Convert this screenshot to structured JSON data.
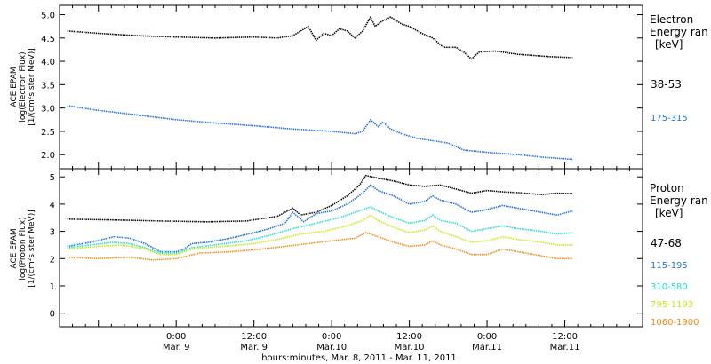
{
  "chart_data": [
    {
      "type": "line",
      "panel": "electron",
      "ylabel_lines": [
        "ACE EPAM",
        "log(Electron Flux)",
        "[1/(cm²s ster MeV)]"
      ],
      "ylim": [
        1.7,
        5.2
      ],
      "yticks": [
        2.0,
        2.5,
        3.0,
        3.5,
        4.0,
        4.5,
        5.0
      ],
      "ytick_labels": [
        "2.0",
        "2.5",
        "3.0",
        "3.5",
        "4.0",
        "4.5",
        "5.0"
      ],
      "legend_title_lines": [
        "Electron",
        "Energy ran",
        "[keV]"
      ],
      "series": [
        {
          "name": "38-53",
          "color": "#000000",
          "points": [
            [
              -0.7,
              4.65
            ],
            [
              -0.5,
              4.6
            ],
            [
              -0.25,
              4.55
            ],
            [
              0.0,
              4.52
            ],
            [
              0.25,
              4.5
            ],
            [
              0.5,
              4.52
            ],
            [
              0.65,
              4.5
            ],
            [
              0.75,
              4.55
            ],
            [
              0.85,
              4.75
            ],
            [
              0.9,
              4.45
            ],
            [
              0.95,
              4.6
            ],
            [
              1.0,
              4.55
            ],
            [
              1.05,
              4.7
            ],
            [
              1.1,
              4.65
            ],
            [
              1.15,
              4.5
            ],
            [
              1.2,
              4.65
            ],
            [
              1.25,
              4.95
            ],
            [
              1.28,
              4.75
            ],
            [
              1.32,
              4.85
            ],
            [
              1.38,
              4.95
            ],
            [
              1.45,
              4.8
            ],
            [
              1.5,
              4.75
            ],
            [
              1.58,
              4.6
            ],
            [
              1.65,
              4.5
            ],
            [
              1.72,
              4.3
            ],
            [
              1.8,
              4.3
            ],
            [
              1.85,
              4.2
            ],
            [
              1.9,
              4.05
            ],
            [
              1.95,
              4.2
            ],
            [
              2.05,
              4.22
            ],
            [
              2.2,
              4.15
            ],
            [
              2.4,
              4.1
            ],
            [
              2.55,
              4.08
            ]
          ]
        },
        {
          "name": "175-315",
          "color": "#1e6fd9",
          "points": [
            [
              -0.7,
              3.05
            ],
            [
              -0.5,
              2.95
            ],
            [
              -0.25,
              2.85
            ],
            [
              0.0,
              2.75
            ],
            [
              0.25,
              2.68
            ],
            [
              0.5,
              2.62
            ],
            [
              0.75,
              2.55
            ],
            [
              1.0,
              2.5
            ],
            [
              1.15,
              2.45
            ],
            [
              1.2,
              2.5
            ],
            [
              1.25,
              2.75
            ],
            [
              1.3,
              2.6
            ],
            [
              1.33,
              2.7
            ],
            [
              1.38,
              2.55
            ],
            [
              1.45,
              2.45
            ],
            [
              1.55,
              2.35
            ],
            [
              1.65,
              2.3
            ],
            [
              1.75,
              2.25
            ],
            [
              1.85,
              2.1
            ],
            [
              2.0,
              2.05
            ],
            [
              2.2,
              2.0
            ],
            [
              2.35,
              1.95
            ],
            [
              2.55,
              1.9
            ]
          ]
        }
      ]
    },
    {
      "type": "line",
      "panel": "proton",
      "ylabel_lines": [
        "ACE EPAM",
        "log(Proton Flux)",
        "[1/(cm²s ster MeV)]"
      ],
      "ylim": [
        -0.5,
        5.3
      ],
      "yticks": [
        0,
        1,
        2,
        3,
        4,
        5
      ],
      "ytick_labels": [
        "0",
        "1",
        "2",
        "3",
        "4",
        "5"
      ],
      "legend_title_lines": [
        "Proton",
        "Energy ran",
        "[keV]"
      ],
      "xlabel": "hours:minutes, Mar.  8, 2011 - Mar. 11, 2011",
      "xlim": [
        -0.75,
        3.0
      ],
      "xticks": [
        0.0,
        0.5,
        1.0,
        1.5,
        2.0,
        2.5
      ],
      "xtick_labels": [
        [
          "0:00",
          "Mar. 9"
        ],
        [
          "12:00",
          "Mar. 9"
        ],
        [
          "0:00",
          "Mar.10"
        ],
        [
          "12:00",
          "Mar.10"
        ],
        [
          "0:00",
          "Mar.11"
        ],
        [
          "12:00",
          "Mar.11"
        ]
      ],
      "series": [
        {
          "name": "47-68",
          "color": "#000000",
          "points": [
            [
              -0.7,
              3.45
            ],
            [
              -0.4,
              3.42
            ],
            [
              -0.1,
              3.38
            ],
            [
              0.2,
              3.35
            ],
            [
              0.45,
              3.38
            ],
            [
              0.65,
              3.55
            ],
            [
              0.75,
              3.85
            ],
            [
              0.8,
              3.6
            ],
            [
              0.9,
              3.7
            ],
            [
              1.0,
              3.95
            ],
            [
              1.1,
              4.3
            ],
            [
              1.18,
              4.7
            ],
            [
              1.22,
              5.05
            ],
            [
              1.3,
              4.95
            ],
            [
              1.4,
              4.85
            ],
            [
              1.5,
              4.7
            ],
            [
              1.6,
              4.65
            ],
            [
              1.7,
              4.7
            ],
            [
              1.8,
              4.55
            ],
            [
              1.9,
              4.4
            ],
            [
              2.0,
              4.5
            ],
            [
              2.1,
              4.45
            ],
            [
              2.2,
              4.42
            ],
            [
              2.35,
              4.35
            ],
            [
              2.45,
              4.4
            ],
            [
              2.55,
              4.38
            ]
          ]
        },
        {
          "name": "115-195",
          "color": "#1e6fd9",
          "points": [
            [
              -0.7,
              2.45
            ],
            [
              -0.55,
              2.6
            ],
            [
              -0.4,
              2.8
            ],
            [
              -0.3,
              2.75
            ],
            [
              -0.2,
              2.55
            ],
            [
              -0.1,
              2.25
            ],
            [
              0.0,
              2.25
            ],
            [
              0.05,
              2.35
            ],
            [
              0.1,
              2.55
            ],
            [
              0.2,
              2.6
            ],
            [
              0.35,
              2.75
            ],
            [
              0.5,
              2.95
            ],
            [
              0.6,
              3.1
            ],
            [
              0.7,
              3.3
            ],
            [
              0.75,
              3.7
            ],
            [
              0.82,
              3.35
            ],
            [
              0.9,
              3.65
            ],
            [
              1.0,
              3.75
            ],
            [
              1.1,
              4.0
            ],
            [
              1.2,
              4.4
            ],
            [
              1.25,
              4.7
            ],
            [
              1.3,
              4.5
            ],
            [
              1.4,
              4.3
            ],
            [
              1.5,
              4.0
            ],
            [
              1.6,
              4.1
            ],
            [
              1.65,
              4.3
            ],
            [
              1.7,
              4.15
            ],
            [
              1.8,
              4.0
            ],
            [
              1.9,
              3.7
            ],
            [
              2.0,
              3.8
            ],
            [
              2.1,
              3.95
            ],
            [
              2.2,
              3.85
            ],
            [
              2.3,
              3.75
            ],
            [
              2.45,
              3.6
            ],
            [
              2.55,
              3.75
            ]
          ]
        },
        {
          "name": "310-580",
          "color": "#26d9d0",
          "points": [
            [
              -0.7,
              2.4
            ],
            [
              -0.55,
              2.5
            ],
            [
              -0.4,
              2.6
            ],
            [
              -0.3,
              2.55
            ],
            [
              -0.2,
              2.4
            ],
            [
              -0.1,
              2.2
            ],
            [
              0.0,
              2.2
            ],
            [
              0.1,
              2.4
            ],
            [
              0.25,
              2.5
            ],
            [
              0.45,
              2.65
            ],
            [
              0.6,
              2.85
            ],
            [
              0.75,
              3.1
            ],
            [
              0.9,
              3.3
            ],
            [
              1.05,
              3.5
            ],
            [
              1.15,
              3.7
            ],
            [
              1.25,
              3.9
            ],
            [
              1.3,
              3.75
            ],
            [
              1.4,
              3.5
            ],
            [
              1.5,
              3.3
            ],
            [
              1.6,
              3.4
            ],
            [
              1.65,
              3.6
            ],
            [
              1.7,
              3.4
            ],
            [
              1.8,
              3.3
            ],
            [
              1.9,
              3.0
            ],
            [
              2.0,
              3.1
            ],
            [
              2.1,
              3.2
            ],
            [
              2.2,
              3.1
            ],
            [
              2.35,
              3.0
            ],
            [
              2.45,
              2.9
            ],
            [
              2.55,
              2.95
            ]
          ]
        },
        {
          "name": "795-1193",
          "color": "#c8e617",
          "points": [
            [
              -0.7,
              2.35
            ],
            [
              -0.5,
              2.45
            ],
            [
              -0.35,
              2.5
            ],
            [
              -0.2,
              2.35
            ],
            [
              -0.1,
              2.15
            ],
            [
              0.0,
              2.15
            ],
            [
              0.1,
              2.35
            ],
            [
              0.3,
              2.45
            ],
            [
              0.5,
              2.55
            ],
            [
              0.65,
              2.7
            ],
            [
              0.8,
              2.9
            ],
            [
              0.95,
              3.0
            ],
            [
              1.1,
              3.2
            ],
            [
              1.2,
              3.4
            ],
            [
              1.25,
              3.6
            ],
            [
              1.3,
              3.4
            ],
            [
              1.4,
              3.15
            ],
            [
              1.5,
              2.95
            ],
            [
              1.6,
              3.05
            ],
            [
              1.65,
              3.2
            ],
            [
              1.7,
              3.0
            ],
            [
              1.8,
              2.8
            ],
            [
              1.9,
              2.6
            ],
            [
              2.0,
              2.65
            ],
            [
              2.1,
              2.8
            ],
            [
              2.2,
              2.7
            ],
            [
              2.35,
              2.6
            ],
            [
              2.45,
              2.5
            ],
            [
              2.55,
              2.5
            ]
          ]
        },
        {
          "name": "1060-1900",
          "color": "#f08a14",
          "points": [
            [
              -0.7,
              2.05
            ],
            [
              -0.5,
              2.0
            ],
            [
              -0.3,
              2.05
            ],
            [
              -0.15,
              1.95
            ],
            [
              0.0,
              2.0
            ],
            [
              0.15,
              2.2
            ],
            [
              0.35,
              2.25
            ],
            [
              0.55,
              2.35
            ],
            [
              0.7,
              2.45
            ],
            [
              0.85,
              2.55
            ],
            [
              1.0,
              2.65
            ],
            [
              1.15,
              2.75
            ],
            [
              1.22,
              2.95
            ],
            [
              1.3,
              2.8
            ],
            [
              1.4,
              2.6
            ],
            [
              1.5,
              2.45
            ],
            [
              1.6,
              2.5
            ],
            [
              1.65,
              2.65
            ],
            [
              1.7,
              2.5
            ],
            [
              1.8,
              2.35
            ],
            [
              1.9,
              2.15
            ],
            [
              2.0,
              2.15
            ],
            [
              2.1,
              2.35
            ],
            [
              2.2,
              2.25
            ],
            [
              2.35,
              2.1
            ],
            [
              2.45,
              2.0
            ],
            [
              2.55,
              2.0
            ]
          ]
        }
      ]
    }
  ]
}
